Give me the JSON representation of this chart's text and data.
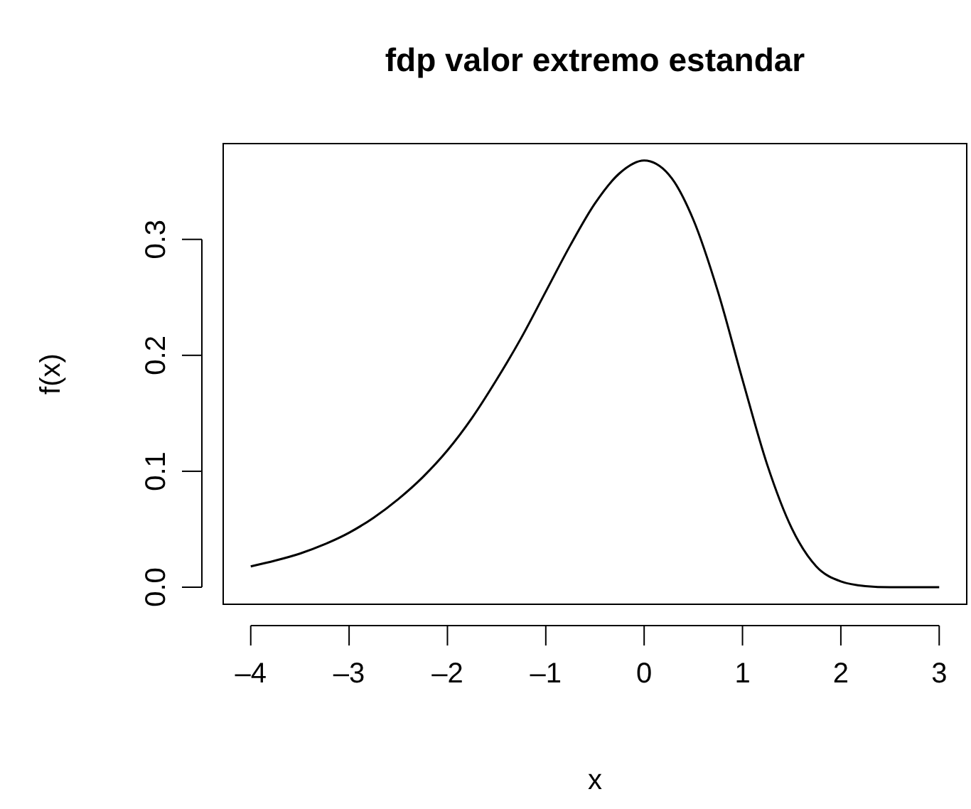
{
  "chart_data": {
    "type": "line",
    "title": "fdp valor extremo estandar",
    "xlabel": "x",
    "ylabel": "f(x)",
    "x": [
      -4,
      -3.75,
      -3.5,
      -3.25,
      -3,
      -2.75,
      -2.5,
      -2.25,
      -2,
      -1.75,
      -1.5,
      -1.25,
      -1,
      -0.75,
      -0.5,
      -0.25,
      0,
      0.25,
      0.5,
      0.75,
      1,
      1.25,
      1.5,
      1.75,
      2,
      2.25,
      2.5,
      2.75,
      3
    ],
    "series": [
      {
        "color": "#000000",
        "values": [
          0.018,
          0.023,
          0.029,
          0.037,
          0.047,
          0.06,
          0.076,
          0.095,
          0.118,
          0.146,
          0.179,
          0.215,
          0.255,
          0.295,
          0.331,
          0.357,
          0.368,
          0.356,
          0.317,
          0.255,
          0.179,
          0.106,
          0.051,
          0.018,
          0.005,
          0.001,
          0,
          0,
          0
        ]
      }
    ],
    "xlim": [
      -4.28,
      3.28
    ],
    "ylim": [
      -0.0147,
      0.3826
    ],
    "xticks": [
      {
        "value": -4,
        "label": "–4"
      },
      {
        "value": -3,
        "label": "–3"
      },
      {
        "value": -2,
        "label": "–2"
      },
      {
        "value": -1,
        "label": "–1"
      },
      0,
      1,
      2,
      3
    ],
    "yticks": [
      {
        "value": 0,
        "label": "0.0"
      },
      0.1,
      0.2,
      0.3
    ],
    "grid": false,
    "marker": "none",
    "line_style": "solid"
  }
}
